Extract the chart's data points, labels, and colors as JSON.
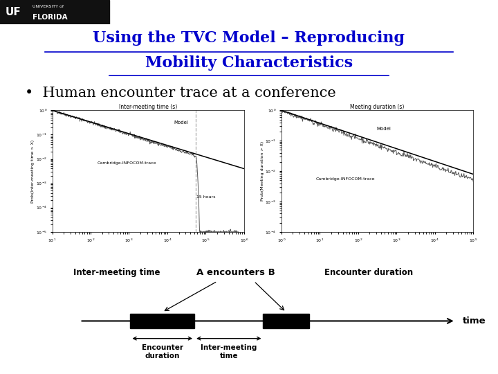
{
  "title_line1": "Using the TVC Model – Reproducing",
  "title_line2": "Mobility Characteristics",
  "bullet_text": "Human encounter trace at a conference",
  "header_bg_color": "#0000cc",
  "slide_bg_color": "#ffffff",
  "title_color": "#0000cc",
  "title_fontsize": 16,
  "bullet_fontsize": 15,
  "timeline_label_inter_meeting": "Inter-meeting time",
  "timeline_label_encounters": "A encounters B",
  "timeline_label_encounter_duration": "Encounter duration",
  "timeline_label_time": "time",
  "timeline_label_enc_dur_below": "Encounter\nduration",
  "timeline_label_inter_below": "Inter-meeting\ntime",
  "left_plot_title": "Inter-meeting time (s)",
  "left_plot_ylabel": "Prob(Inter-meeting time > X)",
  "left_plot_label1": "Model",
  "left_plot_label2": "Cambridge-INFOCOM-trace",
  "left_plot_annotation": "15 hours",
  "right_plot_title": "Meeting duration (s)",
  "right_plot_ylabel": "Prob(Meeting duration > X)",
  "right_plot_label1": "Model",
  "right_plot_label2": "Cambridge-INFOCOM-trace"
}
